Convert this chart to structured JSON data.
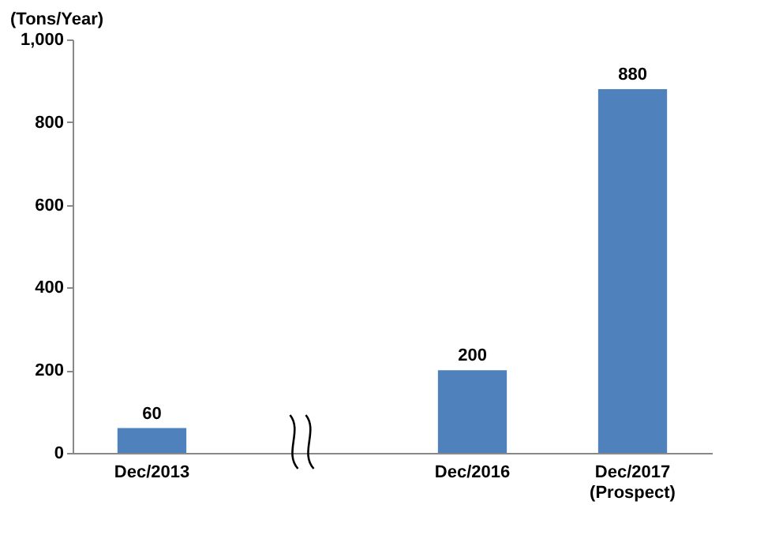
{
  "chart_data": {
    "type": "bar",
    "ylabel": "(Tons/Year)",
    "categories": [
      "Dec/2013",
      null,
      "Dec/2016",
      "Dec/2017\n(Prospect)"
    ],
    "values": [
      60,
      null,
      200,
      880
    ],
    "color": "#4f81bd",
    "ylim": [
      0,
      1000
    ],
    "yticks": [
      0,
      200,
      400,
      600,
      800,
      {
        "value": 1000,
        "label": "1,000"
      }
    ],
    "data_labels": true,
    "grid": false
  }
}
